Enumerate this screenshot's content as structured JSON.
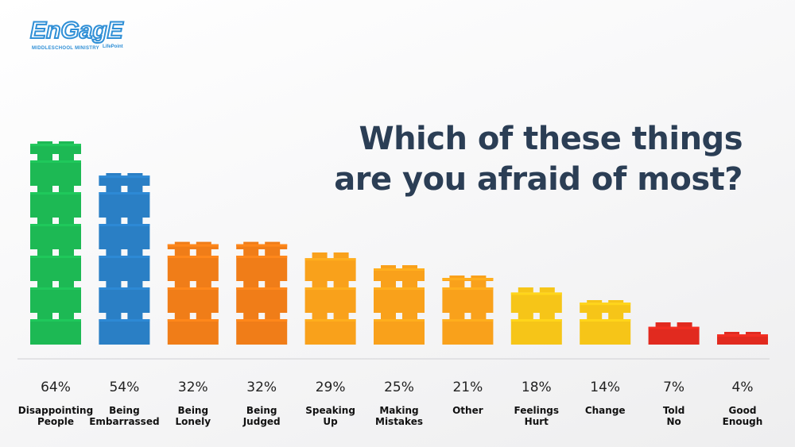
{
  "logo": {
    "word": "EnGagE",
    "subtitle": "MIDDLESCHOOL MINISTRY",
    "tagline": "LifePoint"
  },
  "chart_data": {
    "type": "bar",
    "title_lines": [
      "Which of these things",
      "are you afraid of most?"
    ],
    "categories": [
      [
        "Disappointing",
        "People"
      ],
      [
        "Being",
        "Embarrassed"
      ],
      [
        "Being",
        "Lonely"
      ],
      [
        "Being",
        "Judged"
      ],
      [
        "Speaking",
        "Up"
      ],
      [
        "Making",
        "Mistakes"
      ],
      [
        "Other"
      ],
      [
        "Feelings",
        "Hurt"
      ],
      [
        "Change"
      ],
      [
        "Told",
        "No"
      ],
      [
        "Good",
        "Enough"
      ]
    ],
    "values": [
      64,
      54,
      32,
      32,
      29,
      25,
      21,
      18,
      14,
      7,
      4
    ],
    "value_labels": [
      "64%",
      "54%",
      "32%",
      "32%",
      "29%",
      "25%",
      "21%",
      "18%",
      "14%",
      "7%",
      "4%"
    ],
    "colors": [
      "#1db954",
      "#2a7fc5",
      "#f07d18",
      "#f07d18",
      "#f9a11b",
      "#f9a11b",
      "#f9a11b",
      "#f6c518",
      "#f6c518",
      "#e12a1f",
      "#e12a1f"
    ],
    "brick_value": 10,
    "style": "stacked bricks"
  }
}
